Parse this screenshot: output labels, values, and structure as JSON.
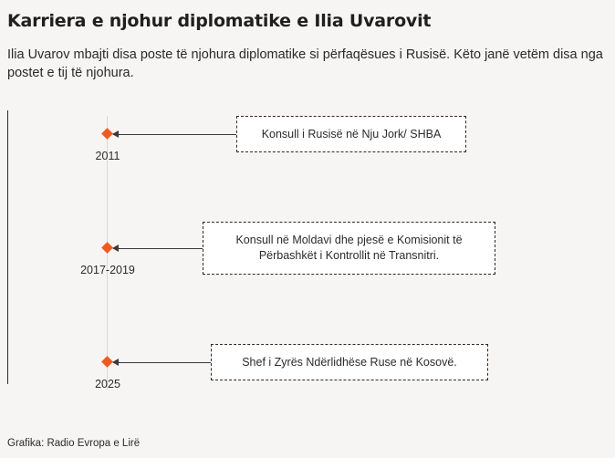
{
  "title": "Karriera e njohur diplomatike e Ilia Uvarovit",
  "subtitle": "Ilia Uvarov mbajti disa poste të njohura diplomatike si përfaqësues i Rusisë. Këto janë vetëm disa nga postet e tij të njohura.",
  "accent_color": "#f15a1f",
  "events": [
    {
      "year": "2011",
      "description": "Konsull i Rusisë në Nju Jork/ SHBA"
    },
    {
      "year": "2017-2019",
      "description": "Konsull në Moldavi dhe pjesë e Komisionit të Përbashkët i Kontrollit në Transnitri."
    },
    {
      "year": "2025",
      "description": "Shef i Zyrës Ndërlidhëse Ruse në Kosovë."
    }
  ],
  "source": "Grafika: Radio Evropa e Lirë"
}
